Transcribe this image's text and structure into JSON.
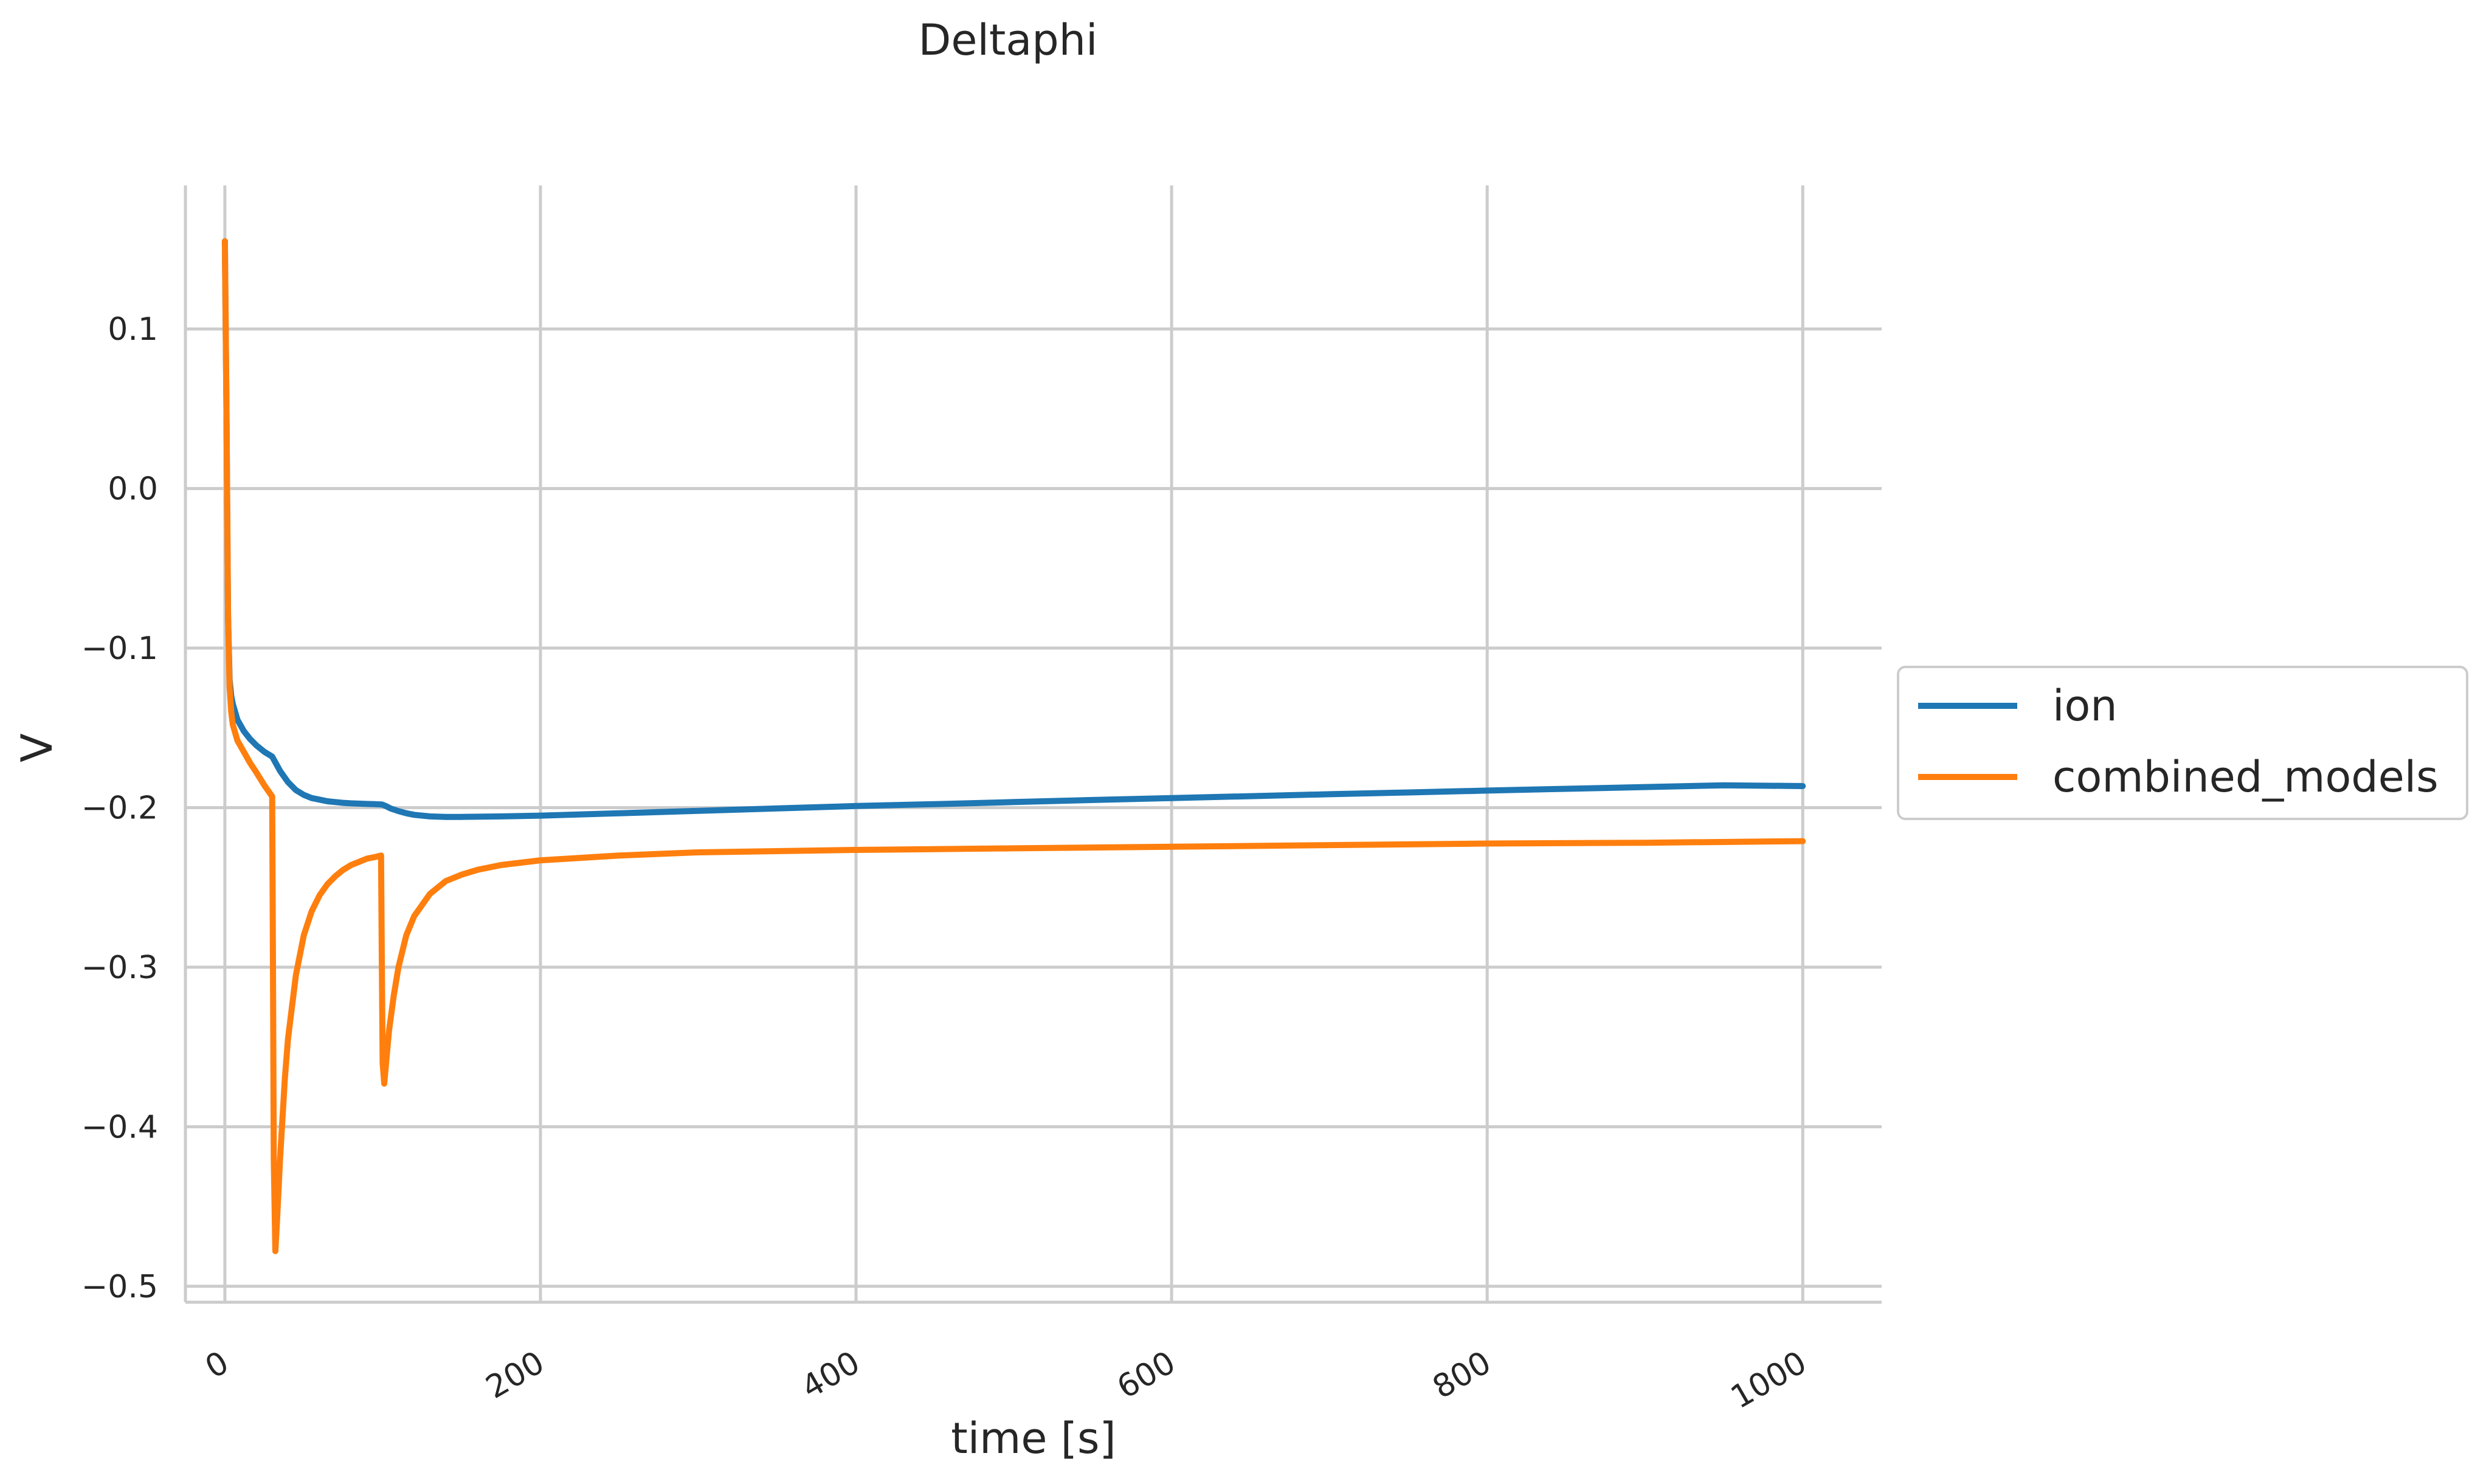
{
  "chart_data": {
    "type": "line",
    "title": "Deltaphi",
    "xlabel": "time [s]",
    "ylabel": "V",
    "xlim": [
      -25,
      1050
    ],
    "ylim": [
      -0.51,
      0.19
    ],
    "xticks": [
      0,
      200,
      400,
      600,
      800,
      1000
    ],
    "xtick_labels": [
      "0",
      "200",
      "400",
      "600",
      "800",
      "1000"
    ],
    "yticks": [
      0.1,
      0.0,
      -0.1,
      -0.2,
      -0.3,
      -0.4,
      -0.5
    ],
    "ytick_labels": [
      "0.1",
      "0.0",
      "−0.1",
      "−0.2",
      "−0.3",
      "−0.4",
      "−0.5"
    ],
    "grid": true,
    "legend_position": "center-right-outside",
    "series": [
      {
        "name": "ion",
        "color": "#1f77b4",
        "x": [
          0,
          1,
          2,
          3,
          4,
          5,
          8,
          12,
          16,
          20,
          25,
          30,
          35,
          40,
          45,
          50,
          55,
          60,
          65,
          70,
          75,
          80,
          85,
          90,
          95,
          99,
          100,
          102,
          105,
          110,
          115,
          120,
          130,
          140,
          150,
          160,
          175,
          200,
          250,
          300,
          350,
          400,
          450,
          500,
          550,
          600,
          650,
          700,
          750,
          800,
          850,
          900,
          950,
          1000
        ],
        "y": [
          0.155,
          0.05,
          -0.08,
          -0.12,
          -0.13,
          -0.135,
          -0.145,
          -0.152,
          -0.157,
          -0.161,
          -0.165,
          -0.168,
          -0.177,
          -0.184,
          -0.189,
          -0.192,
          -0.194,
          -0.195,
          -0.196,
          -0.1965,
          -0.197,
          -0.1973,
          -0.1975,
          -0.1977,
          -0.1978,
          -0.198,
          -0.1982,
          -0.199,
          -0.2005,
          -0.2022,
          -0.2035,
          -0.2045,
          -0.2055,
          -0.2058,
          -0.2058,
          -0.2057,
          -0.2055,
          -0.205,
          -0.2035,
          -0.202,
          -0.2005,
          -0.199,
          -0.1978,
          -0.1965,
          -0.1952,
          -0.194,
          -0.1928,
          -0.1916,
          -0.1905,
          -0.1893,
          -0.1882,
          -0.1871,
          -0.186,
          -0.1865
        ]
      },
      {
        "name": "combined_models",
        "color": "#ff7f0e",
        "x": [
          0,
          1,
          2,
          3,
          4,
          5,
          8,
          12,
          16,
          20,
          25,
          30,
          30.5,
          31,
          32,
          33,
          35,
          38,
          40,
          45,
          50,
          55,
          60,
          65,
          70,
          75,
          80,
          85,
          90,
          95,
          99,
          99.5,
          100,
          101,
          102,
          104,
          107,
          110,
          115,
          120,
          130,
          140,
          150,
          160,
          175,
          200,
          250,
          300,
          400,
          500,
          600,
          700,
          800,
          900,
          1000
        ],
        "y": [
          0.155,
          0.05,
          -0.08,
          -0.125,
          -0.14,
          -0.148,
          -0.158,
          -0.165,
          -0.172,
          -0.178,
          -0.186,
          -0.193,
          -0.3,
          -0.42,
          -0.478,
          -0.46,
          -0.42,
          -0.37,
          -0.345,
          -0.305,
          -0.28,
          -0.265,
          -0.255,
          -0.248,
          -0.243,
          -0.239,
          -0.236,
          -0.234,
          -0.232,
          -0.231,
          -0.23,
          -0.3,
          -0.36,
          -0.373,
          -0.362,
          -0.34,
          -0.318,
          -0.3,
          -0.28,
          -0.268,
          -0.254,
          -0.246,
          -0.242,
          -0.239,
          -0.236,
          -0.233,
          -0.23,
          -0.228,
          -0.2265,
          -0.2255,
          -0.2245,
          -0.2235,
          -0.2225,
          -0.222,
          -0.221
        ]
      }
    ]
  }
}
